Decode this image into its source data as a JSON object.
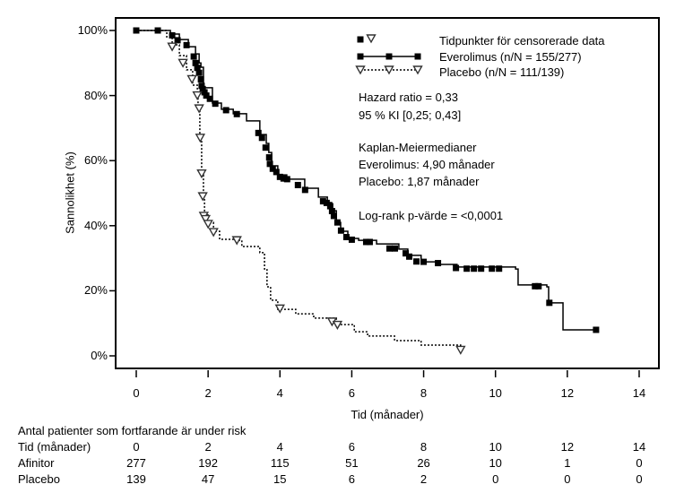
{
  "chart_data": {
    "type": "line",
    "title": "",
    "xlabel": "Tid (månader)",
    "ylabel": "Sannolikhet (%)",
    "xlim": [
      0,
      14
    ],
    "ylim": [
      0,
      100
    ],
    "xticks": [
      "0",
      "2",
      "4",
      "6",
      "8",
      "10",
      "12",
      "14"
    ],
    "yticks": [
      "0%",
      "20%",
      "40%",
      "60%",
      "80%",
      "100%"
    ],
    "legend": {
      "position": "top-right",
      "censor_label": "Tidpunkter för censorerade data",
      "entries": [
        "Everolimus (n/N = 155/277)",
        "Placebo (n/N = 111/139)"
      ]
    },
    "annotations": [
      "Hazard ratio = 0,33",
      "95 % KI [0,25; 0,43]",
      "Kaplan-Meiermedianer",
      "Everolimus: 4,90 månader",
      "Placebo: 1,87 månader",
      "Log-rank p-värde = <0,0001"
    ],
    "series": [
      {
        "name": "Everolimus",
        "style": "solid",
        "marker": "square",
        "points": [
          [
            0,
            100
          ],
          [
            0.57,
            100
          ],
          [
            0.95,
            98.9
          ],
          [
            1.2,
            97.2
          ],
          [
            1.45,
            95
          ],
          [
            1.65,
            92.8
          ],
          [
            1.75,
            90
          ],
          [
            1.8,
            88.7
          ],
          [
            1.87,
            82.4
          ],
          [
            2.12,
            77.7
          ],
          [
            2.37,
            75.8
          ],
          [
            2.7,
            74.4
          ],
          [
            3.07,
            72.2
          ],
          [
            3.44,
            68
          ],
          [
            3.62,
            65.3
          ],
          [
            3.69,
            62.5
          ],
          [
            3.77,
            58.4
          ],
          [
            3.94,
            55.6
          ],
          [
            4.19,
            54.3
          ],
          [
            4.69,
            51.5
          ],
          [
            5.07,
            48.8
          ],
          [
            5.32,
            47.1
          ],
          [
            5.44,
            44.6
          ],
          [
            5.57,
            41
          ],
          [
            5.69,
            38.3
          ],
          [
            5.89,
            36.1
          ],
          [
            6.19,
            35.5
          ],
          [
            6.69,
            34.4
          ],
          [
            7.31,
            32.8
          ],
          [
            7.56,
            30.9
          ],
          [
            7.93,
            28.9
          ],
          [
            8.44,
            28.1
          ],
          [
            8.93,
            27.3
          ],
          [
            10.56,
            26.7
          ],
          [
            10.63,
            21.8
          ],
          [
            11.43,
            21.2
          ],
          [
            11.48,
            16.3
          ],
          [
            11.85,
            16.3
          ],
          [
            11.88,
            8
          ],
          [
            12.8,
            8
          ]
        ],
        "censored": [
          [
            0,
            100
          ],
          [
            0.6,
            100
          ],
          [
            1.0,
            98.5
          ],
          [
            1.15,
            97
          ],
          [
            1.4,
            95.5
          ],
          [
            1.6,
            92
          ],
          [
            1.65,
            90
          ],
          [
            1.7,
            88.5
          ],
          [
            1.75,
            87
          ],
          [
            1.8,
            85
          ],
          [
            1.82,
            83
          ],
          [
            1.85,
            82
          ],
          [
            1.9,
            81
          ],
          [
            1.95,
            80
          ],
          [
            2.05,
            79
          ],
          [
            2.2,
            77.5
          ],
          [
            2.5,
            75.5
          ],
          [
            2.8,
            74.3
          ],
          [
            3.4,
            68.5
          ],
          [
            3.5,
            67
          ],
          [
            3.6,
            64
          ],
          [
            3.7,
            61
          ],
          [
            3.72,
            59
          ],
          [
            3.8,
            57.5
          ],
          [
            3.9,
            56.5
          ],
          [
            4.0,
            55
          ],
          [
            4.1,
            54.5
          ],
          [
            4.2,
            54.3
          ],
          [
            4.5,
            52.5
          ],
          [
            4.7,
            51
          ],
          [
            5.2,
            47.5
          ],
          [
            5.3,
            47
          ],
          [
            5.4,
            46
          ],
          [
            5.45,
            44.5
          ],
          [
            5.5,
            43
          ],
          [
            5.6,
            41
          ],
          [
            5.7,
            38.5
          ],
          [
            5.85,
            36.5
          ],
          [
            6.0,
            35.7
          ],
          [
            6.4,
            35
          ],
          [
            6.5,
            35
          ],
          [
            7.05,
            33
          ],
          [
            7.2,
            33
          ],
          [
            7.5,
            31.5
          ],
          [
            7.6,
            30.5
          ],
          [
            7.8,
            29
          ],
          [
            8.0,
            28.9
          ],
          [
            8.4,
            28.5
          ],
          [
            8.9,
            27
          ],
          [
            9.2,
            26.8
          ],
          [
            9.4,
            26.8
          ],
          [
            9.6,
            26.8
          ],
          [
            9.9,
            26.8
          ],
          [
            10.1,
            26.8
          ],
          [
            11.1,
            21.4
          ],
          [
            11.2,
            21.4
          ],
          [
            11.5,
            16.3
          ],
          [
            12.8,
            8
          ]
        ]
      },
      {
        "name": "Placebo",
        "style": "dotted",
        "marker": "triangle-down",
        "points": [
          [
            0,
            100
          ],
          [
            0.6,
            100
          ],
          [
            0.85,
            98
          ],
          [
            1.0,
            95.6
          ],
          [
            1.2,
            92.3
          ],
          [
            1.4,
            87.9
          ],
          [
            1.57,
            83.2
          ],
          [
            1.7,
            80.4
          ],
          [
            1.72,
            76.3
          ],
          [
            1.77,
            66.7
          ],
          [
            1.82,
            55.6
          ],
          [
            1.87,
            49.3
          ],
          [
            1.9,
            43.3
          ],
          [
            2.0,
            41
          ],
          [
            2.15,
            38.3
          ],
          [
            2.32,
            35.8
          ],
          [
            2.82,
            35.5
          ],
          [
            2.94,
            33.6
          ],
          [
            3.44,
            31.7
          ],
          [
            3.57,
            26.7
          ],
          [
            3.64,
            21.2
          ],
          [
            3.74,
            17.1
          ],
          [
            3.94,
            14.3
          ],
          [
            4.44,
            12.9
          ],
          [
            4.94,
            11.6
          ],
          [
            5.57,
            9.6
          ],
          [
            6.07,
            7.4
          ],
          [
            6.44,
            6.1
          ],
          [
            7.19,
            4.7
          ],
          [
            7.93,
            3.3
          ],
          [
            9.03,
            2.2
          ]
        ],
        "censored": [
          [
            1.0,
            95
          ],
          [
            1.3,
            90
          ],
          [
            1.55,
            85
          ],
          [
            1.7,
            80
          ],
          [
            1.75,
            76
          ],
          [
            1.78,
            67
          ],
          [
            1.82,
            56
          ],
          [
            1.85,
            49
          ],
          [
            1.88,
            43
          ],
          [
            1.93,
            42
          ],
          [
            2.0,
            40.5
          ],
          [
            2.15,
            38
          ],
          [
            2.8,
            35.5
          ],
          [
            4.0,
            14.5
          ],
          [
            5.45,
            10.5
          ],
          [
            5.6,
            9.5
          ],
          [
            9.03,
            1.8
          ]
        ]
      }
    ]
  },
  "risk_table": {
    "title": "Antal patienter som fortfarande är under risk",
    "header_label": "Tid (månader)",
    "times": [
      "0",
      "2",
      "4",
      "6",
      "8",
      "10",
      "12",
      "14"
    ],
    "rows": [
      {
        "label": "Afinitor",
        "values": [
          "277",
          "192",
          "115",
          "51",
          "26",
          "10",
          "1",
          "0"
        ]
      },
      {
        "label": "Placebo",
        "values": [
          "139",
          "47",
          "15",
          "6",
          "2",
          "0",
          "0",
          "0"
        ]
      }
    ]
  }
}
